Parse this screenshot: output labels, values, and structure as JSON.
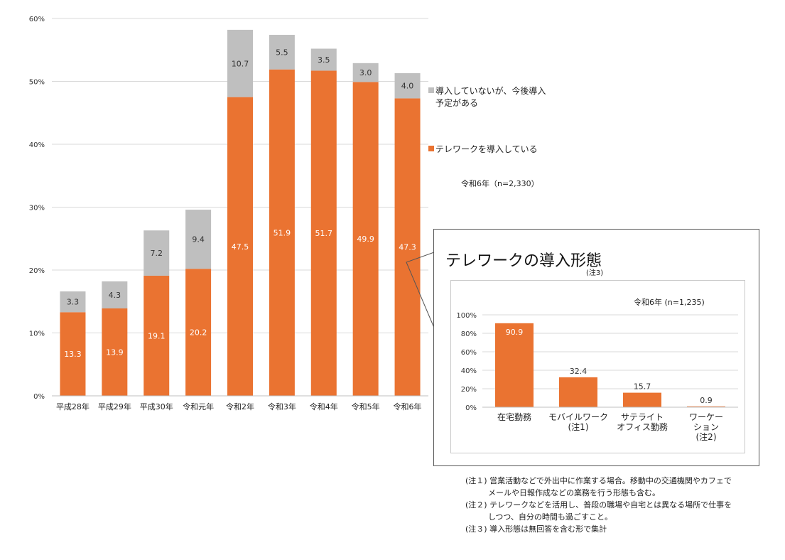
{
  "colors": {
    "adopted": "#ea7331",
    "planned": "#bfbfbf",
    "grid": "#d9d9d9",
    "axis": "#bfbfbf"
  },
  "chart_data": [
    {
      "type": "bar",
      "stacked": true,
      "categories": [
        "平成28年",
        "平成29年",
        "平成30年",
        "令和元年",
        "令和2年",
        "令和3年",
        "令和4年",
        "令和5年",
        "令和6年"
      ],
      "series": [
        {
          "name": "テレワークを導入している",
          "values": [
            13.3,
            13.9,
            19.1,
            20.2,
            47.5,
            51.9,
            51.7,
            49.9,
            47.3
          ]
        },
        {
          "name": "導入していないが、今後導入予定がある",
          "values": [
            3.3,
            4.3,
            7.2,
            9.4,
            10.7,
            5.5,
            3.5,
            3.0,
            4.0
          ]
        }
      ],
      "yticks": [
        "0%",
        "10%",
        "20%",
        "30%",
        "40%",
        "50%",
        "60%"
      ],
      "ylim": [
        0,
        60
      ],
      "grid": true,
      "legend_position": "right",
      "legend_lines": [
        [
          "導入していないが、今後導入",
          "予定がある"
        ],
        [
          "テレワークを導入している"
        ]
      ],
      "sample_note": "令和6年（n=2,330）"
    },
    {
      "type": "bar",
      "title": "テレワークの導入形態",
      "title_note": "(注3)",
      "sample_note": "令和6年 (n=1,235)",
      "categories": [
        [
          "在宅勤務"
        ],
        [
          "モバイルワーク",
          "(注1)"
        ],
        [
          "サテライト",
          "オフィス勤務"
        ],
        [
          "ワーケー",
          "ション",
          "(注2)"
        ]
      ],
      "values": [
        90.9,
        32.4,
        15.7,
        0.9
      ],
      "yticks": [
        "0%",
        "20%",
        "40%",
        "60%",
        "80%",
        "100%"
      ],
      "ylim": [
        0,
        100
      ],
      "grid": true
    }
  ],
  "notes": [
    {
      "label": "(注１)",
      "lines": [
        "営業活動などで外出中に作業する場合。移動中の交通機関やカフェで",
        "メールや日報作成などの業務を行う形態も含む。"
      ]
    },
    {
      "label": "(注２)",
      "lines": [
        "テレワークなどを活用し、普段の職場や自宅とは異なる場所で仕事を",
        "しつつ、自分の時間も過ごすこと。"
      ]
    },
    {
      "label": "(注３)",
      "lines": [
        "導入形態は無回答を含む形で集計"
      ]
    }
  ]
}
